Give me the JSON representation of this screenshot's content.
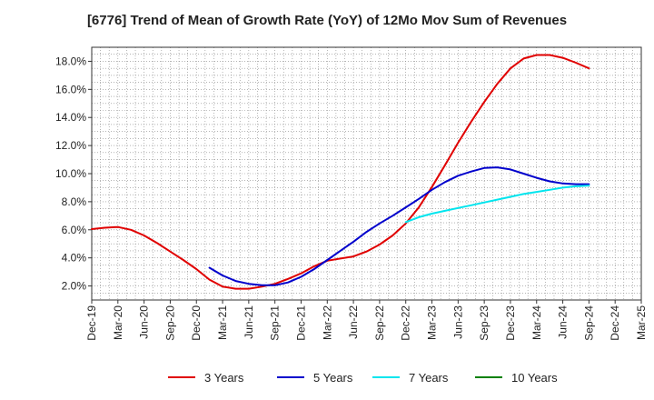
{
  "chart_data": {
    "type": "line",
    "title": "[6776]  Trend of Mean of Growth Rate (YoY) of 12Mo Mov Sum of Revenues",
    "xlabel": "",
    "ylabel": "",
    "ylim": [
      1.0,
      19.0
    ],
    "yticks": [
      2.0,
      4.0,
      6.0,
      8.0,
      10.0,
      12.0,
      14.0,
      16.0,
      18.0
    ],
    "ytick_labels": [
      "2.0%",
      "4.0%",
      "6.0%",
      "8.0%",
      "10.0%",
      "12.0%",
      "14.0%",
      "16.0%",
      "18.0%"
    ],
    "x_categories": [
      "Dec-19",
      "Mar-20",
      "Jun-20",
      "Sep-20",
      "Dec-20",
      "Mar-21",
      "Jun-21",
      "Sep-21",
      "Dec-21",
      "Mar-22",
      "Jun-22",
      "Sep-22",
      "Dec-22",
      "Mar-23",
      "Jun-23",
      "Sep-23",
      "Dec-23",
      "Mar-24",
      "Jun-24",
      "Sep-24",
      "Dec-24",
      "Mar-25"
    ],
    "grid": true,
    "legend_position": "bottom",
    "series": [
      {
        "name": "3 Years",
        "color": "#e00000",
        "points": [
          [
            0,
            6.05
          ],
          [
            0.5,
            6.15
          ],
          [
            1,
            6.2
          ],
          [
            1.5,
            6.0
          ],
          [
            2,
            5.6
          ],
          [
            2.5,
            5.05
          ],
          [
            3,
            4.45
          ],
          [
            3.5,
            3.85
          ],
          [
            4,
            3.2
          ],
          [
            4.5,
            2.45
          ],
          [
            5,
            1.95
          ],
          [
            5.5,
            1.8
          ],
          [
            6,
            1.8
          ],
          [
            6.5,
            1.95
          ],
          [
            7,
            2.15
          ],
          [
            7.5,
            2.5
          ],
          [
            8,
            2.9
          ],
          [
            8.5,
            3.4
          ],
          [
            9,
            3.8
          ],
          [
            9.5,
            3.95
          ],
          [
            10,
            4.1
          ],
          [
            10.5,
            4.45
          ],
          [
            11,
            4.95
          ],
          [
            11.5,
            5.6
          ],
          [
            12,
            6.45
          ],
          [
            12.5,
            7.6
          ],
          [
            13,
            9.05
          ],
          [
            13.5,
            10.6
          ],
          [
            14,
            12.2
          ],
          [
            14.5,
            13.7
          ],
          [
            15,
            15.1
          ],
          [
            15.5,
            16.4
          ],
          [
            16,
            17.5
          ],
          [
            16.5,
            18.2
          ],
          [
            17,
            18.45
          ],
          [
            17.5,
            18.45
          ],
          [
            18,
            18.25
          ],
          [
            18.5,
            17.9
          ],
          [
            19,
            17.5
          ]
        ]
      },
      {
        "name": "5 Years",
        "color": "#0000cc",
        "points": [
          [
            4.5,
            3.3
          ],
          [
            5,
            2.75
          ],
          [
            5.5,
            2.35
          ],
          [
            6,
            2.15
          ],
          [
            6.5,
            2.05
          ],
          [
            7,
            2.05
          ],
          [
            7.5,
            2.25
          ],
          [
            8,
            2.65
          ],
          [
            8.5,
            3.2
          ],
          [
            9,
            3.85
          ],
          [
            9.5,
            4.5
          ],
          [
            10,
            5.15
          ],
          [
            10.5,
            5.85
          ],
          [
            11,
            6.45
          ],
          [
            11.5,
            7.0
          ],
          [
            12,
            7.6
          ],
          [
            12.5,
            8.2
          ],
          [
            13,
            8.85
          ],
          [
            13.5,
            9.4
          ],
          [
            14,
            9.85
          ],
          [
            14.5,
            10.15
          ],
          [
            15,
            10.4
          ],
          [
            15.5,
            10.45
          ],
          [
            16,
            10.3
          ],
          [
            16.5,
            10.0
          ],
          [
            17,
            9.7
          ],
          [
            17.5,
            9.45
          ],
          [
            18,
            9.3
          ],
          [
            18.5,
            9.25
          ],
          [
            19,
            9.25
          ]
        ]
      },
      {
        "name": "7 Years",
        "color": "#00e5ee",
        "points": [
          [
            12,
            6.55
          ],
          [
            12.5,
            6.9
          ],
          [
            13,
            7.15
          ],
          [
            13.5,
            7.35
          ],
          [
            14,
            7.55
          ],
          [
            14.5,
            7.75
          ],
          [
            15,
            7.95
          ],
          [
            15.5,
            8.15
          ],
          [
            16,
            8.35
          ],
          [
            16.5,
            8.55
          ],
          [
            17,
            8.7
          ],
          [
            17.5,
            8.85
          ],
          [
            18,
            9.0
          ],
          [
            18.5,
            9.1
          ],
          [
            19,
            9.15
          ]
        ]
      },
      {
        "name": "10 Years",
        "color": "#008000",
        "points": []
      }
    ]
  }
}
